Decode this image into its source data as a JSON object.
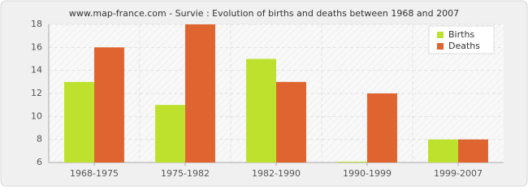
{
  "chart_data": {
    "type": "bar",
    "title": "www.map-france.com - Survie : Evolution of births and deaths between 1968 and 2007",
    "categories": [
      "1968-1975",
      "1975-1982",
      "1982-1990",
      "1990-1999",
      "1999-2007"
    ],
    "series": [
      {
        "name": "Births",
        "color": "#bde12d",
        "values": [
          13,
          11,
          15,
          6,
          8
        ]
      },
      {
        "name": "Deaths",
        "color": "#e0642f",
        "values": [
          16,
          18,
          13,
          12,
          8
        ]
      }
    ],
    "ylim": [
      6,
      18
    ],
    "yticks": [
      6,
      8,
      10,
      12,
      14,
      16,
      18
    ],
    "grid": true,
    "legend": "top-right"
  }
}
